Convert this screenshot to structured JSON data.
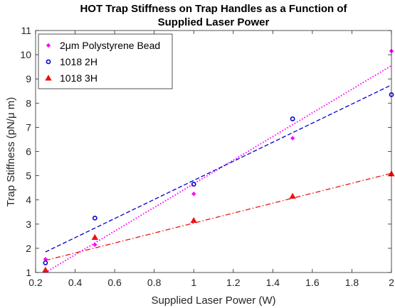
{
  "chart_data": {
    "type": "scatter",
    "title": [
      "HOT Trap Stiffness on Trap Handles as a Function of",
      "Supplied Laser Power"
    ],
    "xlabel": "Supplied Laser Power (W)",
    "ylabel": "Trap Stiffness (pN/μ m)",
    "xlim": [
      0.2,
      2.0
    ],
    "ylim": [
      1,
      11
    ],
    "xticks": [
      0.2,
      0.4,
      0.6,
      0.8,
      1.0,
      1.2,
      1.4,
      1.6,
      1.8,
      2.0
    ],
    "xtick_labels": [
      "0.2",
      "0.4",
      "0.6",
      "0.8",
      "1",
      "1.2",
      "1.4",
      "1.6",
      "1.8",
      "2"
    ],
    "yticks": [
      1,
      2,
      3,
      4,
      5,
      6,
      7,
      8,
      9,
      10,
      11
    ],
    "ytick_labels": [
      "1",
      "2",
      "3",
      "4",
      "5",
      "6",
      "7",
      "8",
      "9",
      "10",
      "11"
    ],
    "grid": false,
    "legend_position": "top-left",
    "series": [
      {
        "name": "2μm Polystyrene Bead",
        "marker": "diamond",
        "color": "#ff00ff",
        "line_style": "dotted",
        "x": [
          0.25,
          0.5,
          1.0,
          1.5,
          2.0
        ],
        "y": [
          1.55,
          2.15,
          4.25,
          6.55,
          10.15
        ],
        "fit": [
          [
            0.25,
            1.0
          ],
          [
            2.0,
            9.55
          ]
        ]
      },
      {
        "name": "1018 2H",
        "marker": "circle",
        "color": "#0000cc",
        "line_style": "dashed",
        "x": [
          0.25,
          0.5,
          1.0,
          1.5,
          2.0
        ],
        "y": [
          1.4,
          3.25,
          4.65,
          7.35,
          8.35
        ],
        "fit": [
          [
            0.25,
            1.85
          ],
          [
            2.0,
            8.75
          ]
        ]
      },
      {
        "name": "1018 3H",
        "marker": "triangle",
        "color": "#ee1111",
        "line_style": "dashdot",
        "x": [
          0.25,
          0.5,
          1.0,
          1.5,
          2.0
        ],
        "y": [
          1.1,
          2.45,
          3.15,
          4.15,
          5.08
        ],
        "fit": [
          [
            0.25,
            1.5
          ],
          [
            2.0,
            5.1
          ]
        ]
      }
    ]
  }
}
